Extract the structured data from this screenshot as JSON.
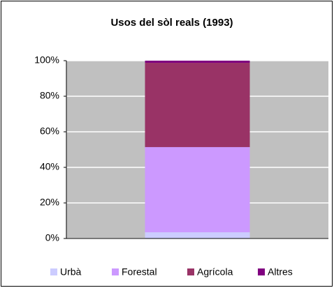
{
  "chart_data": {
    "type": "stacked_bar",
    "title": "Usos del sòl reals (1993)",
    "categories": [
      null
    ],
    "series": [
      {
        "name": "Urbà",
        "color": "#ccccff",
        "values": [
          3.5
        ]
      },
      {
        "name": "Forestal",
        "color": "#cc99ff",
        "values": [
          47.9
        ]
      },
      {
        "name": "Agrícola",
        "color": "#993366",
        "values": [
          47.4
        ]
      },
      {
        "name": "Altres",
        "color": "#800080",
        "values": [
          1.2
        ]
      }
    ],
    "ylim": [
      0,
      100
    ],
    "yticks": [
      {
        "value": 0,
        "label": "0%"
      },
      {
        "value": 20,
        "label": "20%"
      },
      {
        "value": 40,
        "label": "40%"
      },
      {
        "value": 60,
        "label": "60%"
      },
      {
        "value": 80,
        "label": "80%"
      },
      {
        "value": 100,
        "label": "100%"
      }
    ],
    "grid": true,
    "plot_background": "#c0c0c0",
    "legend": "bottom"
  }
}
